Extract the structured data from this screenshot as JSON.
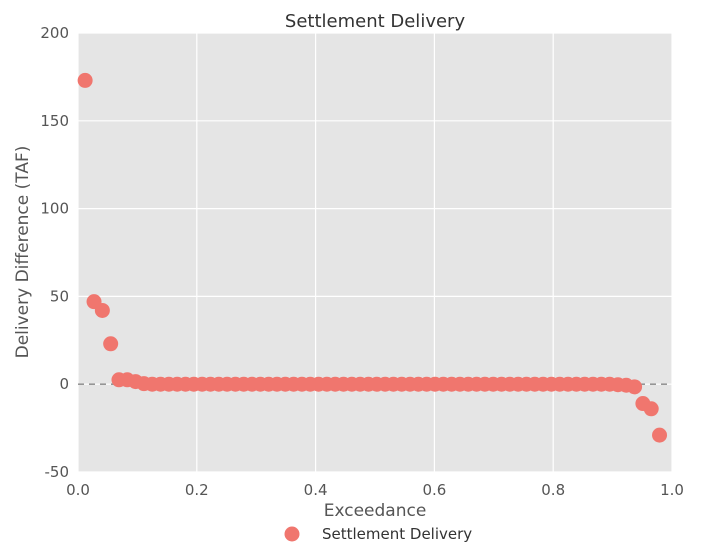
{
  "chart_data": {
    "type": "scatter",
    "title": "Settlement Delivery",
    "xlabel": "Exceedance",
    "ylabel": "Delivery Difference (TAF)",
    "xlim": [
      0.0,
      1.0
    ],
    "ylim": [
      -50,
      200
    ],
    "xticks": [
      "0.0",
      "0.2",
      "0.4",
      "0.6",
      "0.8",
      "1.0"
    ],
    "yticks": [
      "-50",
      "0",
      "50",
      "100",
      "150",
      "200"
    ],
    "grid": true,
    "reference_line": {
      "y": 0,
      "style": "dashed"
    },
    "legend": {
      "position": "bottom-center",
      "entries": [
        "Settlement Delivery"
      ]
    },
    "colors": {
      "marker": "#f0766e",
      "plot_background": "#e5e5e5",
      "grid": "#ffffff",
      "reference_line": "#888888"
    },
    "series": [
      {
        "name": "Settlement Delivery",
        "points": [
          [
            0.012,
            173
          ],
          [
            0.027,
            47
          ],
          [
            0.041,
            42
          ],
          [
            0.055,
            23
          ],
          [
            0.069,
            2.5
          ],
          [
            0.083,
            2.5
          ],
          [
            0.097,
            1.5
          ],
          [
            0.111,
            0.3
          ],
          [
            0.125,
            0
          ],
          [
            0.139,
            0
          ],
          [
            0.153,
            0
          ],
          [
            0.167,
            0
          ],
          [
            0.181,
            0
          ],
          [
            0.195,
            0
          ],
          [
            0.209,
            0
          ],
          [
            0.223,
            0
          ],
          [
            0.237,
            0
          ],
          [
            0.251,
            0
          ],
          [
            0.265,
            0
          ],
          [
            0.279,
            0
          ],
          [
            0.293,
            0
          ],
          [
            0.307,
            0
          ],
          [
            0.321,
            0
          ],
          [
            0.335,
            0
          ],
          [
            0.349,
            0
          ],
          [
            0.363,
            0
          ],
          [
            0.377,
            0
          ],
          [
            0.391,
            0
          ],
          [
            0.405,
            0
          ],
          [
            0.419,
            0
          ],
          [
            0.433,
            0
          ],
          [
            0.447,
            0
          ],
          [
            0.461,
            0
          ],
          [
            0.475,
            0
          ],
          [
            0.489,
            0
          ],
          [
            0.503,
            0
          ],
          [
            0.517,
            0
          ],
          [
            0.531,
            0
          ],
          [
            0.545,
            0
          ],
          [
            0.559,
            0
          ],
          [
            0.573,
            0
          ],
          [
            0.587,
            0
          ],
          [
            0.601,
            0
          ],
          [
            0.615,
            0
          ],
          [
            0.629,
            0
          ],
          [
            0.643,
            0
          ],
          [
            0.657,
            0
          ],
          [
            0.671,
            0
          ],
          [
            0.685,
            0
          ],
          [
            0.699,
            0
          ],
          [
            0.713,
            0
          ],
          [
            0.727,
            0
          ],
          [
            0.741,
            0
          ],
          [
            0.755,
            0
          ],
          [
            0.769,
            0
          ],
          [
            0.783,
            0
          ],
          [
            0.797,
            0
          ],
          [
            0.811,
            0
          ],
          [
            0.825,
            0
          ],
          [
            0.839,
            0
          ],
          [
            0.853,
            0
          ],
          [
            0.867,
            0
          ],
          [
            0.881,
            0
          ],
          [
            0.895,
            0
          ],
          [
            0.909,
            -0.3
          ],
          [
            0.923,
            -0.6
          ],
          [
            0.937,
            -1.5
          ],
          [
            0.951,
            -11
          ],
          [
            0.965,
            -14
          ],
          [
            0.979,
            -29
          ]
        ]
      }
    ]
  }
}
